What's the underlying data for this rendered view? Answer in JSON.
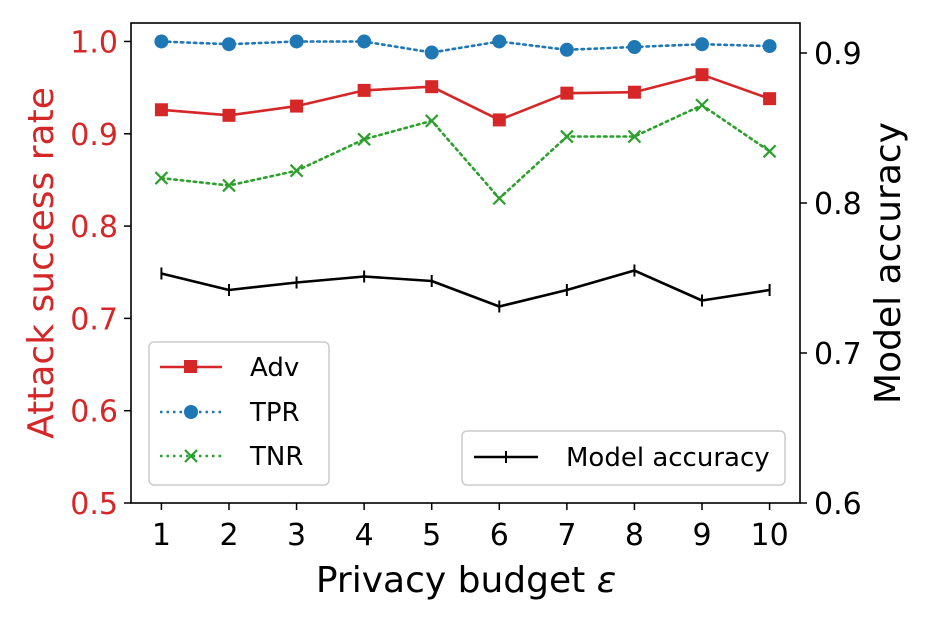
{
  "chart_data": {
    "type": "line",
    "xlabel_text": "Privacy budget ",
    "xlabel_symbol": "ε",
    "ylabel_left": "Attack success rate",
    "ylabel_right": "Model accuracy",
    "x": [
      1,
      2,
      3,
      4,
      5,
      6,
      7,
      8,
      9,
      10
    ],
    "x_ticks": [
      "1",
      "2",
      "3",
      "4",
      "5",
      "6",
      "7",
      "8",
      "9",
      "10"
    ],
    "xlim": [
      0.55,
      10.45
    ],
    "ylim_left": [
      0.5,
      1.02
    ],
    "ylim_right": [
      0.6,
      0.92
    ],
    "left_ticks": [
      "0.5",
      "0.6",
      "0.7",
      "0.8",
      "0.9",
      "1.0"
    ],
    "right_ticks": [
      "0.6",
      "0.7",
      "0.8",
      "0.9"
    ],
    "left_axis_color": "#d62728",
    "series_left": [
      {
        "name": "Adv",
        "color": "#d62728",
        "marker": "square",
        "style": "solid",
        "values": [
          0.926,
          0.92,
          0.93,
          0.947,
          0.951,
          0.915,
          0.944,
          0.945,
          0.964,
          0.938
        ]
      },
      {
        "name": "TPR",
        "color": "#1f77b4",
        "marker": "circle",
        "style": "dotted",
        "values": [
          1.0,
          0.997,
          1.0,
          1.0,
          0.988,
          1.0,
          0.991,
          0.994,
          0.997,
          0.995
        ]
      },
      {
        "name": "TNR",
        "color": "#2ca02c",
        "marker": "x",
        "style": "dotted",
        "values": [
          0.852,
          0.844,
          0.86,
          0.894,
          0.914,
          0.83,
          0.897,
          0.897,
          0.931,
          0.881
        ]
      }
    ],
    "series_right": [
      {
        "name": "Model accuracy",
        "color": "#000000",
        "marker": "plus",
        "style": "solid",
        "values": [
          0.753,
          0.742,
          0.747,
          0.751,
          0.748,
          0.731,
          0.742,
          0.755,
          0.735,
          0.742
        ]
      }
    ],
    "legend_left_position": "lower-left",
    "legend_right_position": "lower-right"
  }
}
